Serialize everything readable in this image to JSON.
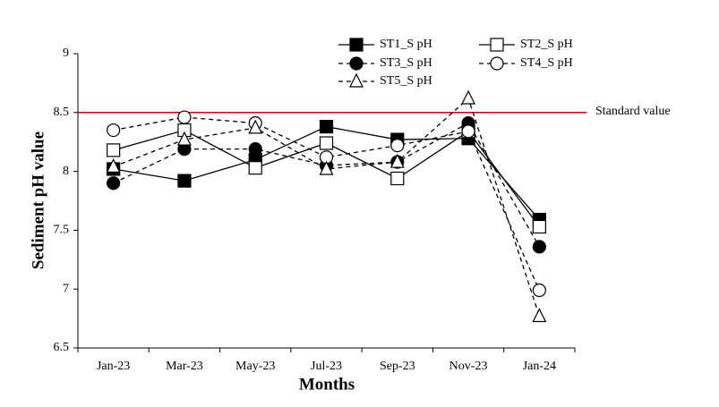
{
  "chart_data": {
    "type": "line",
    "xlabel": "Months",
    "ylabel": "Sediment pH value",
    "categories": [
      "Jan-23",
      "Mar-23",
      "May-23",
      "Jul-23",
      "Sep-23",
      "Nov-23",
      "Jan-24"
    ],
    "ylim": [
      6.5,
      9
    ],
    "yticks": [
      6.5,
      7,
      7.5,
      8,
      8.5,
      9
    ],
    "reference_line": {
      "value": 8.5,
      "label": "Standard value",
      "color": "#c00000"
    },
    "series": [
      {
        "name": "ST1_S pH",
        "color": "#000000",
        "marker": "square",
        "filled": true,
        "dashed": false,
        "values": [
          8.02,
          7.92,
          8.1,
          8.38,
          8.27,
          8.28,
          7.59
        ]
      },
      {
        "name": "ST2_S pH",
        "color": "#000000",
        "marker": "square",
        "filled": false,
        "dashed": false,
        "values": [
          8.18,
          8.35,
          8.03,
          8.24,
          7.94,
          8.34,
          7.53
        ]
      },
      {
        "name": "ST3_S pH",
        "color": "#000000",
        "marker": "circle",
        "filled": true,
        "dashed": true,
        "values": [
          7.9,
          8.19,
          8.19,
          8.05,
          8.08,
          8.41,
          7.36
        ]
      },
      {
        "name": "ST4_S pH",
        "color": "#000000",
        "marker": "circle",
        "filled": false,
        "dashed": true,
        "values": [
          8.35,
          8.46,
          8.41,
          8.12,
          8.22,
          8.34,
          6.99
        ]
      },
      {
        "name": "ST5_S pH",
        "color": "#000000",
        "marker": "triangle",
        "filled": false,
        "dashed": true,
        "values": [
          8.04,
          8.27,
          8.37,
          8.02,
          8.08,
          8.62,
          6.77
        ]
      }
    ]
  }
}
